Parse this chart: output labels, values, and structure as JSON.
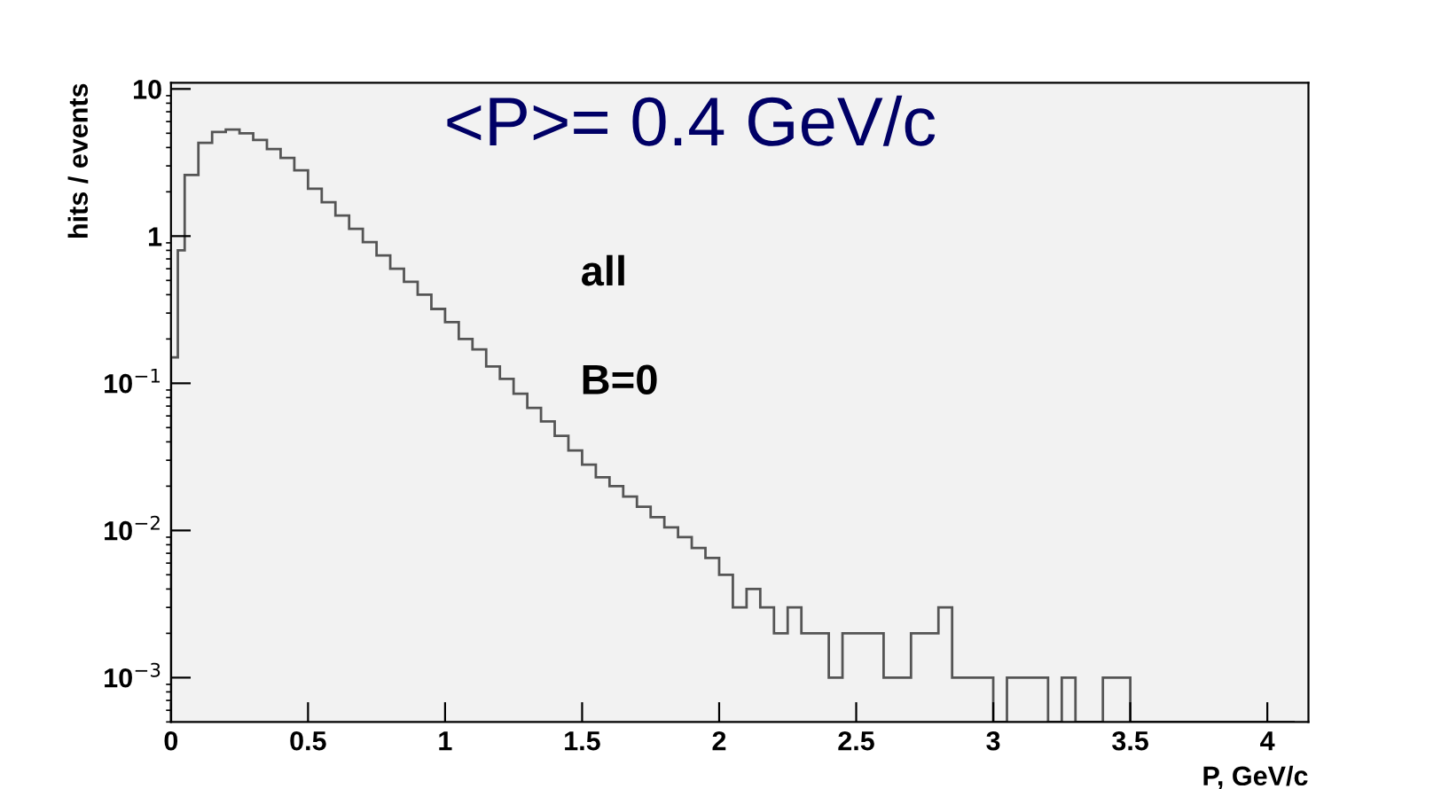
{
  "chart_data": {
    "type": "histogram",
    "xlabel": "P, GeV/c",
    "ylabel": "hits / events",
    "annotations": [
      "<P>= 0.4 GeV/c",
      "all",
      "B=0"
    ],
    "bins": [
      0,
      0.025,
      0.05,
      0.1,
      0.15,
      0.2,
      0.25,
      0.3,
      0.35,
      0.4,
      0.45,
      0.5,
      0.55,
      0.6,
      0.65,
      0.7,
      0.75,
      0.8,
      0.85,
      0.9,
      0.95,
      1.0,
      1.05,
      1.1,
      1.15,
      1.2,
      1.25,
      1.3,
      1.35,
      1.4,
      1.45,
      1.5,
      1.55,
      1.6,
      1.65,
      1.7,
      1.75,
      1.8,
      1.85,
      1.9,
      1.95,
      2.0,
      2.05,
      2.1,
      2.15,
      2.2,
      2.25,
      2.3,
      2.35,
      2.4,
      2.45,
      2.5,
      2.55,
      2.6,
      2.65,
      2.7,
      2.75,
      2.8,
      2.85,
      2.9,
      2.95,
      3.0,
      3.05,
      3.1,
      3.15,
      3.2,
      3.25,
      3.3,
      3.35,
      3.4,
      3.45,
      3.5,
      3.55,
      3.6,
      3.65,
      3.7,
      3.75,
      3.8,
      3.85,
      3.9,
      3.95,
      4.0,
      4.05,
      4.1
    ],
    "values": [
      0.15,
      0.8,
      2.6,
      4.3,
      5.1,
      5.3,
      5.0,
      4.5,
      3.9,
      3.4,
      2.8,
      2.1,
      1.7,
      1.38,
      1.12,
      0.91,
      0.74,
      0.6,
      0.49,
      0.4,
      0.32,
      0.26,
      0.2,
      0.17,
      0.13,
      0.107,
      0.085,
      0.068,
      0.055,
      0.044,
      0.035,
      0.028,
      0.023,
      0.02,
      0.017,
      0.0145,
      0.0123,
      0.0105,
      0.009,
      0.0076,
      0.0065,
      0.005,
      0.003,
      0.004,
      0.003,
      0.002,
      0.003,
      0.002,
      0.002,
      0.001,
      0.002,
      0.002,
      0.002,
      0.001,
      0.001,
      0.002,
      0.002,
      0.003,
      0.001,
      0.001,
      0.001,
      null,
      0.001,
      0.001,
      0.001,
      null,
      0.001,
      null,
      null,
      0.001,
      0.001,
      null,
      null,
      null,
      null,
      null,
      null,
      null,
      null,
      null,
      null,
      null,
      null
    ],
    "color": "#555555",
    "log": "y",
    "xlim": [
      0,
      4.15
    ],
    "ylim": [
      0.0005,
      11
    ],
    "xticks": [
      0,
      0.5,
      1,
      1.5,
      2,
      2.5,
      3,
      3.5,
      4
    ],
    "yticks": [
      {
        "value": 0.001,
        "label": "10$^{−3}$"
      },
      {
        "value": 0.01,
        "label": "10$^{−2}$"
      },
      {
        "value": 0.1,
        "label": "10$^{−1}$"
      },
      1,
      10
    ],
    "grid": false,
    "legend": false
  }
}
